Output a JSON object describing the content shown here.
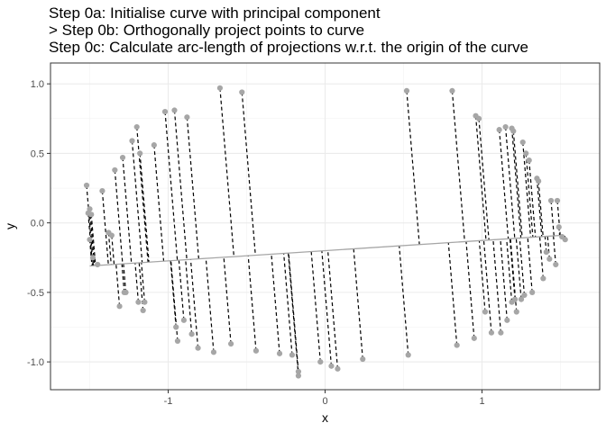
{
  "chart_data": {
    "type": "scatter",
    "title_lines": [
      "Step 0a: Initialise curve with principal component",
      "> Step 0b: Orthogonally project points to curve",
      "Step 0c: Calculate arc-length of projections w.r.t. the origin of the curve"
    ],
    "xlabel": "x",
    "ylabel": "y",
    "xlim": [
      -1.75,
      1.75
    ],
    "ylim": [
      -1.2,
      1.15
    ],
    "x_ticks": [
      -1,
      0,
      1
    ],
    "y_ticks": [
      -1.0,
      -0.5,
      0.0,
      0.5,
      1.0
    ],
    "x_tick_labels": [
      "-1",
      "0",
      "1"
    ],
    "y_tick_labels": [
      "-1.0",
      "-0.5",
      "0.0",
      "0.5",
      "1.0"
    ],
    "grid": true,
    "point_color": "#a6a6a6",
    "curve_color": "#a6a6a6",
    "segment_color": "#000000",
    "curve": {
      "x": [
        -1.5,
        1.5
      ],
      "y": [
        -0.31,
        -0.09
      ]
    },
    "points": {
      "x": [
        -1.51,
        -1.52,
        -1.5,
        -1.49,
        -1.5,
        -1.48,
        -1.45,
        -1.42,
        -1.38,
        -1.36,
        -1.34,
        -1.31,
        -1.29,
        -1.28,
        -1.27,
        -1.23,
        -1.2,
        -1.19,
        -1.18,
        -1.16,
        -1.15,
        -1.09,
        -1.02,
        -0.96,
        -0.95,
        -0.94,
        -0.9,
        -0.88,
        -0.85,
        -0.81,
        -0.71,
        -0.67,
        -0.6,
        -0.53,
        -0.44,
        -0.29,
        -0.21,
        -0.17,
        -0.17,
        -0.03,
        0.04,
        0.08,
        0.24,
        0.52,
        0.53,
        0.81,
        0.84,
        0.95,
        0.96,
        0.98,
        1.02,
        1.06,
        1.11,
        1.12,
        1.15,
        1.16,
        1.19,
        1.19,
        1.2,
        1.21,
        1.22,
        1.25,
        1.26,
        1.27,
        1.28,
        1.3,
        1.32,
        1.35,
        1.36,
        1.39,
        1.41,
        1.43,
        1.44,
        1.47,
        1.48,
        1.49,
        1.51,
        1.53
      ],
      "y": [
        0.07,
        0.27,
        0.1,
        0.06,
        -0.12,
        -0.25,
        -0.3,
        0.23,
        -0.07,
        -0.09,
        0.38,
        -0.6,
        0.47,
        -0.5,
        -0.5,
        0.59,
        0.69,
        -0.57,
        0.5,
        -0.63,
        -0.57,
        0.56,
        0.8,
        0.81,
        -0.75,
        -0.85,
        -0.7,
        0.76,
        -0.8,
        -0.9,
        -0.93,
        0.97,
        -0.87,
        0.94,
        -0.92,
        -0.94,
        -0.95,
        -1.1,
        -1.07,
        -1.0,
        -1.03,
        -1.05,
        -0.98,
        0.95,
        -0.95,
        0.95,
        -0.88,
        -0.83,
        0.77,
        0.75,
        -0.64,
        -0.79,
        0.67,
        -0.79,
        0.69,
        -0.7,
        0.68,
        -0.57,
        0.66,
        -0.55,
        -0.64,
        -0.55,
        0.58,
        -0.52,
        0.5,
        0.45,
        -0.5,
        0.32,
        0.3,
        -0.4,
        -0.21,
        -0.26,
        0.16,
        -0.3,
        0.16,
        -0.03,
        -0.1,
        -0.12
      ]
    }
  }
}
